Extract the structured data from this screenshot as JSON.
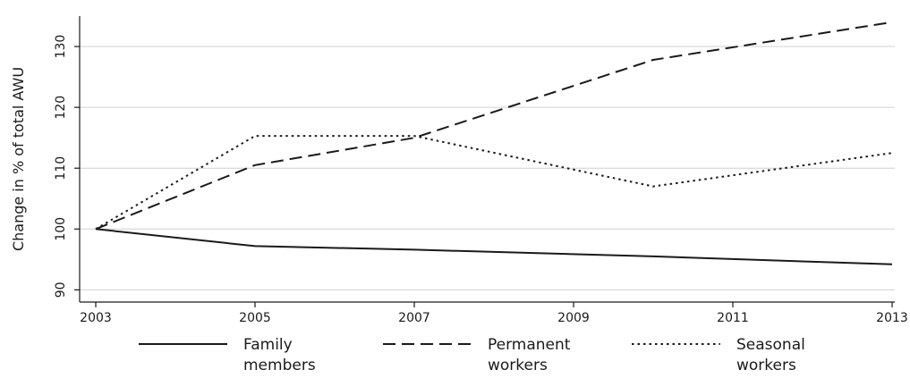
{
  "chart_data": {
    "type": "line",
    "title": "",
    "xlabel": "",
    "ylabel": "Change in % of total AWU",
    "x": [
      2003,
      2005,
      2007,
      2010,
      2013
    ],
    "x_ticks": [
      2003,
      2005,
      2007,
      2009,
      2011,
      2013
    ],
    "y_ticks": [
      90,
      100,
      110,
      120,
      130
    ],
    "xlim": [
      2003,
      2013
    ],
    "ylim": [
      88,
      135
    ],
    "grid": "horizontal",
    "legend_position": "bottom",
    "series": [
      {
        "name_line1": "Family",
        "name_line2": "members",
        "style": "solid",
        "color": "#1a1a1a",
        "points": [
          [
            2003,
            100
          ],
          [
            2005,
            97.2
          ],
          [
            2007,
            96.6
          ],
          [
            2010,
            95.5
          ],
          [
            2013,
            94.2
          ]
        ]
      },
      {
        "name_line1": "Permanent",
        "name_line2": "workers",
        "style": "dashed",
        "color": "#1a1a1a",
        "points": [
          [
            2003,
            100
          ],
          [
            2005,
            110.5
          ],
          [
            2007,
            115
          ],
          [
            2010,
            127.8
          ],
          [
            2013,
            134
          ]
        ]
      },
      {
        "name_line1": "Seasonal",
        "name_line2": "workers",
        "style": "dotted",
        "color": "#1a1a1a",
        "points": [
          [
            2003,
            100
          ],
          [
            2005,
            115.3
          ],
          [
            2007,
            115.3
          ],
          [
            2010,
            107
          ],
          [
            2013,
            112.5
          ]
        ]
      }
    ]
  }
}
